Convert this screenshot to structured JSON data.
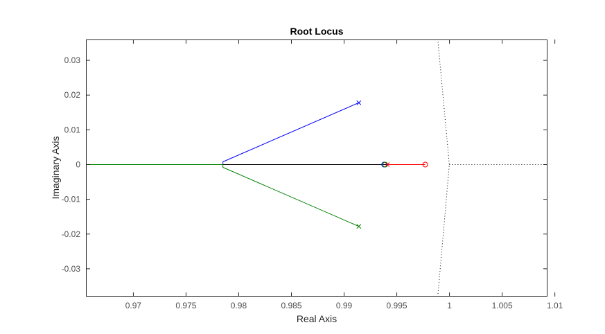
{
  "chart_data": {
    "type": "line",
    "title": "Root Locus",
    "xlabel": "Real Axis",
    "ylabel": "Imaginary Axis",
    "xlim": [
      0.9655,
      1.0093
    ],
    "ylim": [
      -0.038,
      0.036
    ],
    "xticks": [
      0.97,
      0.975,
      0.98,
      0.985,
      0.99,
      0.995,
      1,
      1.005,
      1.01
    ],
    "xtick_labels": [
      "0.97",
      "0.975",
      "0.98",
      "0.985",
      "0.99",
      "0.995",
      "1",
      "1.005",
      "1.01"
    ],
    "yticks": [
      -0.03,
      -0.02,
      -0.01,
      0,
      0.01,
      0.02,
      0.03
    ],
    "ytick_labels": [
      "-0.03",
      "-0.02",
      "-0.01",
      "0",
      "0.01",
      "0.02",
      "0.03"
    ],
    "grid": false,
    "series": [
      {
        "color": "#0000ff",
        "style": "solid",
        "points": [
          [
            0.9914,
            0.0178
          ],
          [
            0.9785,
            0.0008
          ],
          [
            0.9785,
            0.0001
          ]
        ]
      },
      {
        "color": "#008000",
        "style": "solid",
        "points": [
          [
            0.9914,
            -0.0178
          ],
          [
            0.9785,
            -0.0008
          ],
          [
            0.9785,
            0
          ],
          [
            0.9655,
            0
          ]
        ]
      },
      {
        "color": "#ff0000",
        "style": "solid",
        "points": [
          [
            0.9941,
            0
          ],
          [
            0.9977,
            0
          ]
        ]
      },
      {
        "color": "#000000",
        "style": "solid",
        "points": [
          [
            0.9785,
            0
          ],
          [
            0.9941,
            0
          ]
        ]
      }
    ],
    "stability_boundary": {
      "color": "#000000",
      "style": "dotted",
      "curve": [
        [
          0.99889,
          -0.038
        ],
        [
          0.99999,
          0
        ],
        [
          0.99889,
          0.036
        ]
      ],
      "axis_line": [
        [
          0.99999,
          0
        ],
        [
          1.0093,
          0
        ]
      ]
    },
    "poles": [
      {
        "x": 0.9914,
        "y": 0.0178,
        "color": "#0000ff"
      },
      {
        "x": 0.9914,
        "y": -0.0178,
        "color": "#008000"
      },
      {
        "x": 0.9941,
        "y": 0,
        "color": "#ff0000"
      }
    ],
    "zeros": [
      {
        "x": 0.9938,
        "y": 0,
        "color": "#0000ff"
      },
      {
        "x": 0.9939,
        "y": 0,
        "color": "#008000"
      },
      {
        "x": 0.9977,
        "y": 0,
        "color": "#ff0000"
      }
    ]
  }
}
